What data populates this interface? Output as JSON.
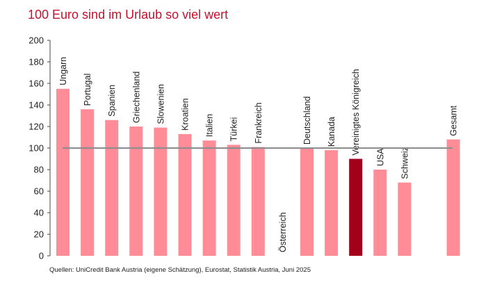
{
  "title": "100 Euro sind im Urlaub so viel wert",
  "source": "Quellen: UniCredit Bank Austria (eigene Schätzung), Eurostat, Statistik Austria,  Juni 2025",
  "chart_data": {
    "type": "bar",
    "categories": [
      "Ungarn",
      "Portugal",
      "Spanien",
      "Griechenland",
      "Slowenien",
      "Kroatien",
      "Italien",
      "Türkei",
      "Frankreich",
      "Österreich",
      "Deutschland",
      "Kanada",
      "Vereinigtes Königreich",
      "USA",
      "Schweiz",
      "",
      "Gesamt"
    ],
    "values": [
      155,
      136,
      126,
      120,
      119,
      113,
      107,
      103,
      101,
      null,
      100,
      98,
      90,
      80,
      68,
      null,
      108
    ],
    "ylim": [
      0,
      200
    ],
    "yticks": [
      0,
      20,
      40,
      60,
      80,
      100,
      120,
      140,
      160,
      180,
      200
    ],
    "reference_line": 100,
    "highlight_category": "Vereinigtes Königreich",
    "colors": {
      "bar": "#ff8c97",
      "highlight": "#a3001b",
      "reference_line": "#8c8c8c",
      "title": "#c8102e"
    },
    "grid": false,
    "legend": "none"
  }
}
